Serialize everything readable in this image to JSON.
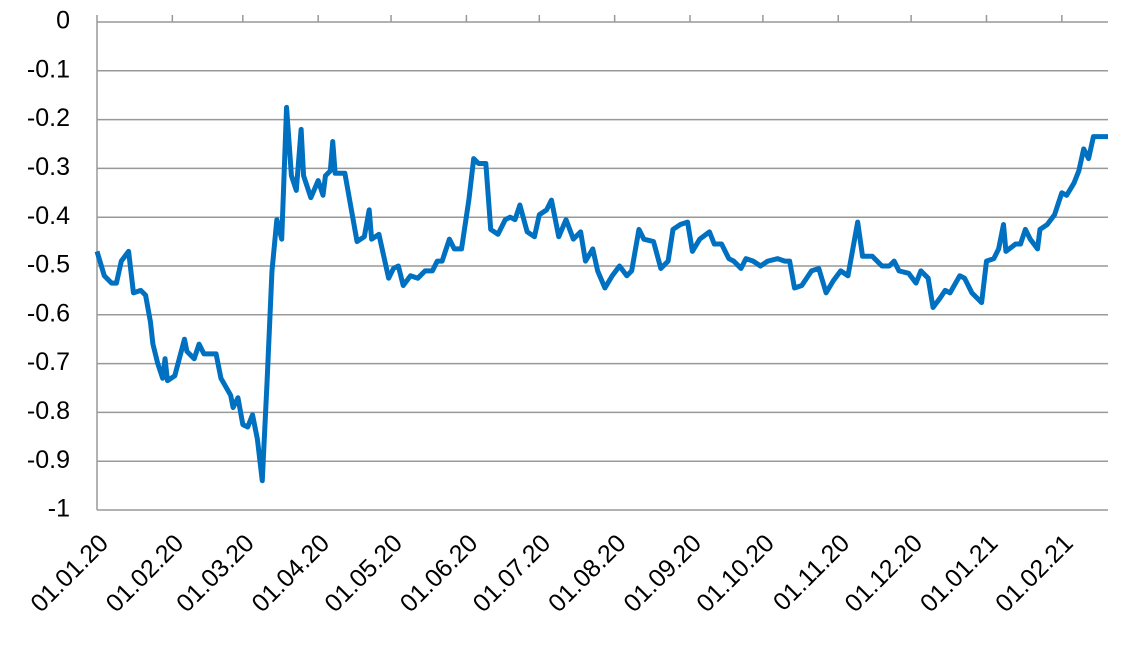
{
  "chart_data": {
    "type": "line",
    "color": "#0070c0",
    "grid": true,
    "x": [
      "01.01.20",
      "04.01.20",
      "07.01.20",
      "09.01.20",
      "11.01.20",
      "14.01.20",
      "16.01.20",
      "19.01.20",
      "21.01.20",
      "23.01.20",
      "24.01.20",
      "26.01.20",
      "28.01.20",
      "29.01.20",
      "30.01.20",
      "02.02.20",
      "06.02.20",
      "07.02.20",
      "10.02.20",
      "12.02.20",
      "14.02.20",
      "19.02.20",
      "21.02.20",
      "25.02.20",
      "26.02.20",
      "28.02.20",
      "01.03.20",
      "03.03.20",
      "05.03.20",
      "07.03.20",
      "09.03.20",
      "11.03.20",
      "13.03.20",
      "15.03.20",
      "17.03.20",
      "19.03.20",
      "21.03.20",
      "23.03.20",
      "25.03.20",
      "26.03.20",
      "29.03.20",
      "01.04.20",
      "03.04.20",
      "04.04.20",
      "06.04.20",
      "07.04.20",
      "08.04.20",
      "12.04.20",
      "17.04.20",
      "20.04.20",
      "22.04.20",
      "23.04.20",
      "26.04.20",
      "30.04.20",
      "02.05.20",
      "04.05.20",
      "06.05.20",
      "09.05.20",
      "12.05.20",
      "15.05.20",
      "18.05.20",
      "20.05.20",
      "22.05.20",
      "25.05.20",
      "27.05.20",
      "30.05.20",
      "02.06.20",
      "04.06.20",
      "06.06.20",
      "09.06.20",
      "11.06.20",
      "14.06.20",
      "17.06.20",
      "19.06.20",
      "21.06.20",
      "23.06.20",
      "26.06.20",
      "29.06.20",
      "01.07.20",
      "04.07.20",
      "06.07.20",
      "09.07.20",
      "12.07.20",
      "15.07.20",
      "18.07.20",
      "20.07.20",
      "23.07.20",
      "25.07.20",
      "28.07.20",
      "31.07.20",
      "03.08.20",
      "06.08.20",
      "08.08.20",
      "11.08.20",
      "13.08.20",
      "17.08.20",
      "20.08.20",
      "23.08.20",
      "25.08.20",
      "28.08.20",
      "31.08.20",
      "02.09.20",
      "05.09.20",
      "09.09.20",
      "11.09.20",
      "14.09.20",
      "17.09.20",
      "19.09.20",
      "22.09.20",
      "24.09.20",
      "27.09.20",
      "30.09.20",
      "03.10.20",
      "07.10.20",
      "10.10.20",
      "12.10.20",
      "14.10.20",
      "17.10.20",
      "21.10.20",
      "24.10.20",
      "27.10.20",
      "30.10.20",
      "02.11.20",
      "05.11.20",
      "07.11.20",
      "09.11.20",
      "11.11.20",
      "15.11.20",
      "19.11.20",
      "22.11.20",
      "24.11.20",
      "26.11.20",
      "30.11.20",
      "03.12.20",
      "05.12.20",
      "08.12.20",
      "10.12.20",
      "13.12.20",
      "15.12.20",
      "17.12.20",
      "21.12.20",
      "23.12.20",
      "26.12.20",
      "30.12.20",
      "01.01.21",
      "04.01.21",
      "06.01.21",
      "08.01.21",
      "09.01.21",
      "13.01.21",
      "15.01.21",
      "17.01.21",
      "19.01.21",
      "22.01.21",
      "23.01.21",
      "26.01.21",
      "29.01.21",
      "01.02.21",
      "03.02.21",
      "06.02.21",
      "08.02.21",
      "10.02.21",
      "12.02.21",
      "14.02.21",
      "20.02.21"
    ],
    "values": [
      -0.47,
      -0.52,
      -0.535,
      -0.535,
      -0.49,
      -0.47,
      -0.555,
      -0.55,
      -0.56,
      -0.615,
      -0.66,
      -0.7,
      -0.73,
      -0.69,
      -0.735,
      -0.725,
      -0.65,
      -0.675,
      -0.69,
      -0.66,
      -0.68,
      -0.68,
      -0.73,
      -0.765,
      -0.79,
      -0.77,
      -0.825,
      -0.83,
      -0.805,
      -0.855,
      -0.94,
      -0.735,
      -0.51,
      -0.405,
      -0.445,
      -0.175,
      -0.315,
      -0.345,
      -0.22,
      -0.315,
      -0.36,
      -0.325,
      -0.355,
      -0.315,
      -0.305,
      -0.245,
      -0.31,
      -0.31,
      -0.45,
      -0.44,
      -0.385,
      -0.445,
      -0.435,
      -0.525,
      -0.505,
      -0.5,
      -0.54,
      -0.52,
      -0.525,
      -0.51,
      -0.51,
      -0.49,
      -0.49,
      -0.445,
      -0.465,
      -0.465,
      -0.365,
      -0.28,
      -0.29,
      -0.29,
      -0.425,
      -0.435,
      -0.405,
      -0.4,
      -0.405,
      -0.375,
      -0.43,
      -0.44,
      -0.395,
      -0.385,
      -0.365,
      -0.44,
      -0.405,
      -0.445,
      -0.43,
      -0.49,
      -0.465,
      -0.51,
      -0.545,
      -0.52,
      -0.5,
      -0.52,
      -0.51,
      -0.425,
      -0.445,
      -0.45,
      -0.505,
      -0.49,
      -0.425,
      -0.415,
      -0.41,
      -0.47,
      -0.445,
      -0.43,
      -0.455,
      -0.455,
      -0.485,
      -0.49,
      -0.505,
      -0.485,
      -0.49,
      -0.5,
      -0.49,
      -0.485,
      -0.49,
      -0.49,
      -0.545,
      -0.54,
      -0.51,
      -0.505,
      -0.555,
      -0.53,
      -0.51,
      -0.52,
      -0.465,
      -0.41,
      -0.48,
      -0.48,
      -0.5,
      -0.5,
      -0.49,
      -0.51,
      -0.515,
      -0.535,
      -0.51,
      -0.525,
      -0.585,
      -0.565,
      -0.55,
      -0.555,
      -0.52,
      -0.525,
      -0.555,
      -0.575,
      -0.49,
      -0.485,
      -0.465,
      -0.415,
      -0.47,
      -0.455,
      -0.455,
      -0.425,
      -0.445,
      -0.465,
      -0.425,
      -0.415,
      -0.395,
      -0.35,
      -0.355,
      -0.33,
      -0.305,
      -0.26,
      -0.28,
      -0.235,
      -0.235
    ],
    "xlim": [
      "01.01.20",
      "20.02.21"
    ],
    "xticks": [
      "01.01.20",
      "01.02.20",
      "01.03.20",
      "01.04.20",
      "01.05.20",
      "01.06.20",
      "01.07.20",
      "01.08.20",
      "01.09.20",
      "01.10.20",
      "01.11.20",
      "01.12.20",
      "01.01.21",
      "01.02.21"
    ],
    "ylim": [
      -1,
      0
    ],
    "yticks": [
      0,
      -0.1,
      -0.2,
      -0.3,
      -0.4,
      -0.5,
      -0.6,
      -0.7,
      -0.8,
      -0.9,
      -1
    ]
  }
}
